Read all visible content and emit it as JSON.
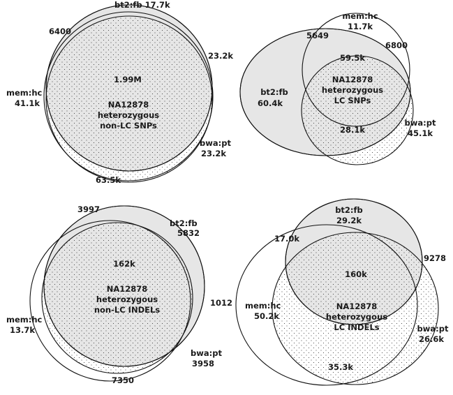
{
  "panels": [
    {
      "id": "snps-non-lc",
      "title_lines": [
        "NA12878",
        "heterozygous",
        "non-LC SNPs"
      ],
      "sets": [
        {
          "name": "bt2:fb",
          "only": "17.7k"
        },
        {
          "name": "mem:hc",
          "only": "41.1k"
        },
        {
          "name": "bwa:pt",
          "only": "23.2k"
        }
      ],
      "pairwise": {
        "bt2fb_memhc": "6400",
        "bt2fb_bwapt": "23.2k",
        "memhc_bwapt": "63.5k"
      },
      "all_three": "1.99M"
    },
    {
      "id": "snps-lc",
      "title_lines": [
        "NA12878",
        "heterozygous",
        "LC SNPs"
      ],
      "sets": [
        {
          "name": "mem:hc",
          "only": "11.7k"
        },
        {
          "name": "bt2:fb",
          "only": "60.4k"
        },
        {
          "name": "bwa:pt",
          "only": "45.1k"
        }
      ],
      "pairwise": {
        "bt2fb_memhc": "5649",
        "memhc_bwapt": "6800",
        "bt2fb_bwapt": "28.1k"
      },
      "all_three": "59.5k"
    },
    {
      "id": "indels-non-lc",
      "title_lines": [
        "NA12878",
        "heterozygous",
        "non-LC INDELs"
      ],
      "sets": [
        {
          "name": "bt2:fb",
          "only": "5832"
        },
        {
          "name": "mem:hc",
          "only": "13.7k"
        },
        {
          "name": "bwa:pt",
          "only": "3958"
        }
      ],
      "pairwise": {
        "bt2fb_memhc": "3997",
        "bt2fb_bwapt": "1012",
        "memhc_bwapt": "7350"
      },
      "all_three": "162k"
    },
    {
      "id": "indels-lc",
      "title_lines": [
        "NA12878",
        "heterozygous",
        "LC INDELs"
      ],
      "sets": [
        {
          "name": "bt2:fb",
          "only": "29.2k"
        },
        {
          "name": "mem:hc",
          "only": "50.2k"
        },
        {
          "name": "bwa:pt",
          "only": "26.6k"
        }
      ],
      "pairwise": {
        "bt2fb_memhc": "17.0k",
        "bt2fb_bwapt": "9278",
        "memhc_bwapt": "35.3k"
      },
      "all_three": "160k"
    }
  ]
}
